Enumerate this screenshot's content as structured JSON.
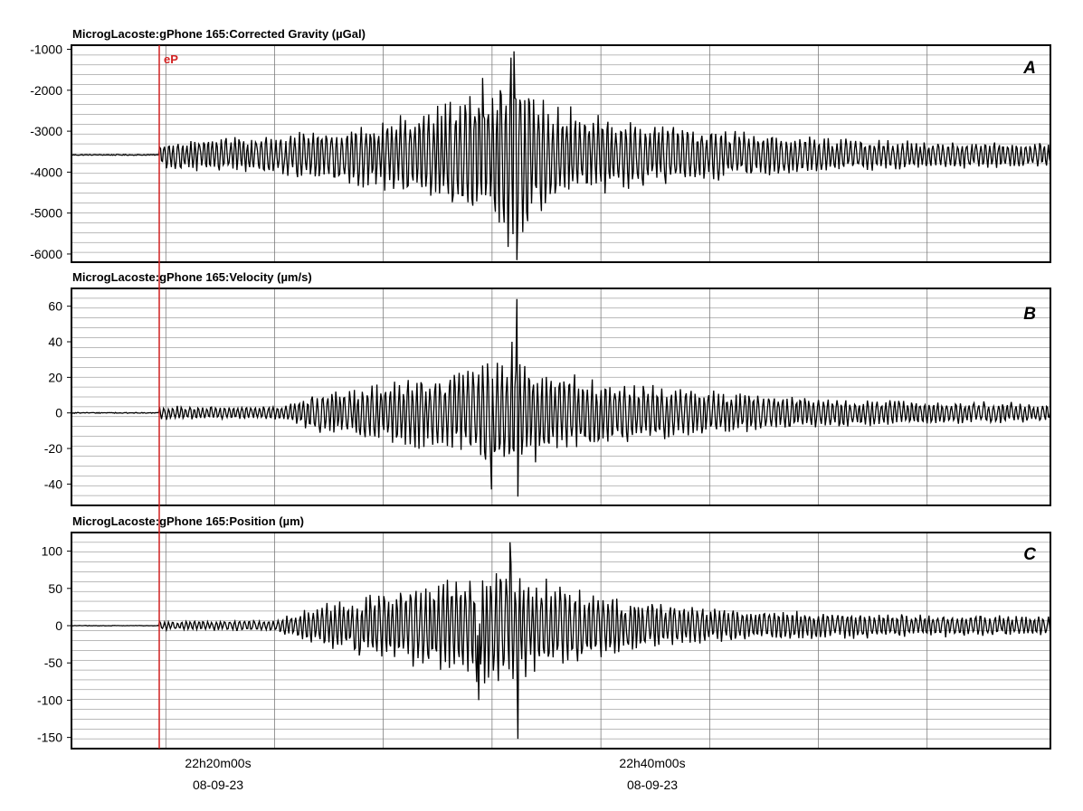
{
  "chart_data": [
    {
      "type": "line",
      "title": "MicrogLacoste:gPhone 165:Corrected Gravity (µGal)",
      "panel_label": "A",
      "yticks": [
        -1000,
        -2000,
        -3000,
        -4000,
        -5000,
        -6000
      ],
      "ylim": [
        -6200,
        -900
      ],
      "baseline": -3580,
      "noise_before": 20,
      "envelope": [
        {
          "t": 0,
          "amp": 350
        },
        {
          "t": 120,
          "amp": 550
        },
        {
          "t": 190,
          "amp": 700
        },
        {
          "t": 280,
          "amp": 1200
        },
        {
          "t": 340,
          "amp": 1700
        },
        {
          "t": 360,
          "amp": 2600
        },
        {
          "t": 380,
          "amp": 1600
        },
        {
          "t": 440,
          "amp": 1000
        },
        {
          "t": 560,
          "amp": 700
        },
        {
          "t": 700,
          "amp": 400
        },
        {
          "t": 990,
          "amp": 280
        }
      ],
      "peaks": [
        {
          "t": 348,
          "y": -2000
        },
        {
          "t": 362,
          "y": -1050
        },
        {
          "t": 365,
          "y": -6150
        },
        {
          "t": 376,
          "y": -5200
        },
        {
          "t": 330,
          "y": -1700
        }
      ],
      "color": "#000000"
    },
    {
      "type": "line",
      "title": "MicrogLacoste:gPhone 165:Velocity (µm/s)",
      "panel_label": "B",
      "yticks": [
        60,
        40,
        20,
        0,
        -20,
        -40
      ],
      "ylim": [
        -52,
        70
      ],
      "baseline": 0,
      "noise_before": 0.5,
      "envelope": [
        {
          "t": 0,
          "amp": 4
        },
        {
          "t": 120,
          "amp": 4
        },
        {
          "t": 160,
          "amp": 12
        },
        {
          "t": 220,
          "amp": 18
        },
        {
          "t": 290,
          "amp": 22
        },
        {
          "t": 340,
          "amp": 32
        },
        {
          "t": 370,
          "amp": 30
        },
        {
          "t": 440,
          "amp": 20
        },
        {
          "t": 560,
          "amp": 13
        },
        {
          "t": 700,
          "amp": 8
        },
        {
          "t": 990,
          "amp": 5
        }
      ],
      "peaks": [
        {
          "t": 365,
          "y": 64
        },
        {
          "t": 366,
          "y": -47
        },
        {
          "t": 339,
          "y": -43
        },
        {
          "t": 360,
          "y": 40
        }
      ],
      "color": "#000000"
    },
    {
      "type": "line",
      "title": "MicrogLacoste:gPhone 165:Position (µm)",
      "panel_label": "C",
      "yticks": [
        100,
        50,
        0,
        -50,
        -100,
        -150
      ],
      "ylim": [
        -165,
        125
      ],
      "baseline": 0,
      "noise_before": 0.5,
      "envelope": [
        {
          "t": 0,
          "amp": 6
        },
        {
          "t": 120,
          "amp": 8
        },
        {
          "t": 150,
          "amp": 25
        },
        {
          "t": 230,
          "amp": 50
        },
        {
          "t": 300,
          "amp": 70
        },
        {
          "t": 345,
          "amp": 95
        },
        {
          "t": 380,
          "amp": 70
        },
        {
          "t": 460,
          "amp": 40
        },
        {
          "t": 560,
          "amp": 25
        },
        {
          "t": 700,
          "amp": 18
        },
        {
          "t": 990,
          "amp": 12
        }
      ],
      "peaks": [
        {
          "t": 358,
          "y": 112
        },
        {
          "t": 366,
          "y": -152
        },
        {
          "t": 326,
          "y": -100
        }
      ],
      "color": "#000000"
    }
  ],
  "xaxis": {
    "ticks": [
      {
        "t": "22h20m00s",
        "d": "08-09-23",
        "pos": 0.15
      },
      {
        "t": "22h40m00s",
        "d": "08-09-23",
        "pos": 0.593
      }
    ]
  },
  "event_marker": {
    "label": "eP",
    "pos": 0.0897,
    "color": "#d22020"
  }
}
